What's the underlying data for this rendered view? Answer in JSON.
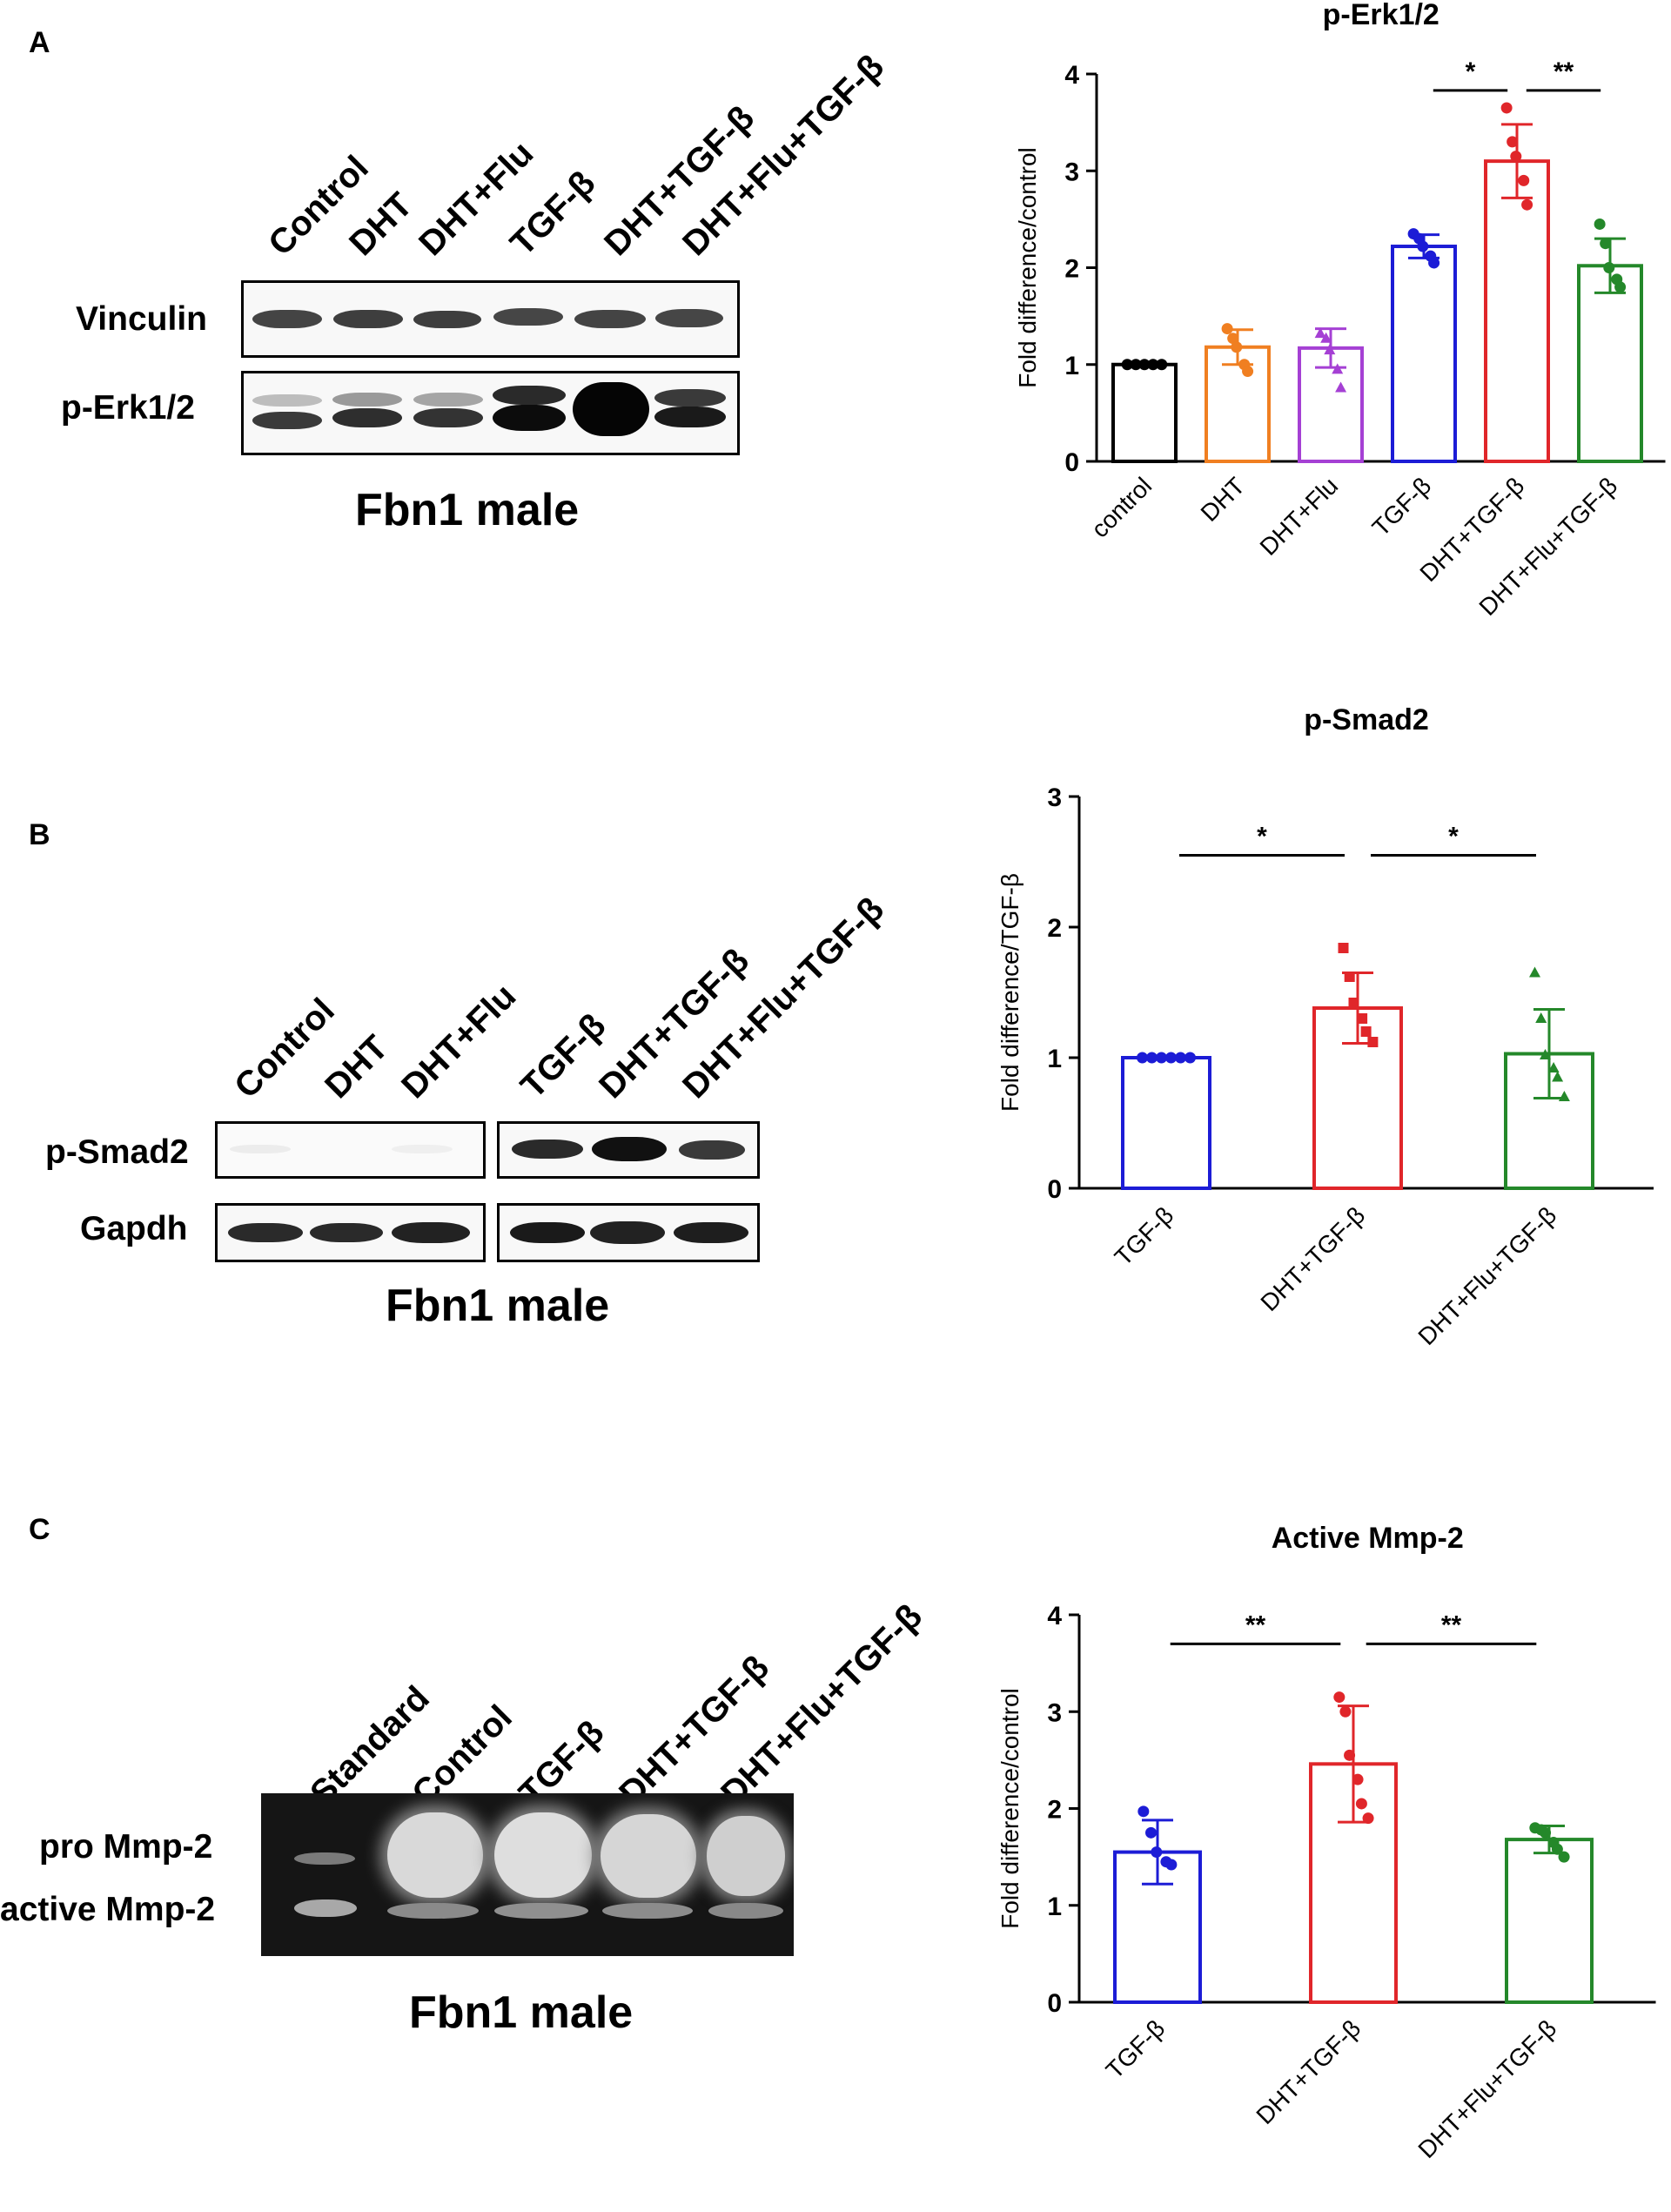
{
  "panels": [
    {
      "letter": "A",
      "blot": {
        "lanes": [
          "Control",
          "DHT",
          "DHT+Flu",
          "TGF-β",
          "DHT+TGF-β",
          "DHT+Flu+TGF-β"
        ],
        "rows": [
          "Vinculin",
          "p-Erk1/2"
        ],
        "caption": "Fbn1 male"
      }
    },
    {
      "letter": "B",
      "blot": {
        "lanes": [
          "Control",
          "DHT",
          "DHT+Flu",
          "TGF-β",
          "DHT+TGF-β",
          "DHT+Flu+TGF-β"
        ],
        "rows": [
          "p-Smad2",
          "Gapdh"
        ],
        "caption": "Fbn1 male"
      }
    },
    {
      "letter": "C",
      "blot": {
        "lanes": [
          "Standard",
          "Control",
          "TGF-β",
          "DHT+TGF-β",
          "DHT+Flu+TGF-β"
        ],
        "rows": [
          "pro Mmp-2",
          "active Mmp-2"
        ],
        "caption": "Fbn1 male"
      }
    }
  ],
  "chart_data": [
    {
      "type": "bar",
      "title": "p-Erk1/2",
      "ylabel": "Fold difference/control",
      "ylim": [
        0,
        4
      ],
      "yticks": [
        0,
        1,
        2,
        3,
        4
      ],
      "categories": [
        "control",
        "DHT",
        "DHT+Flu",
        "TGF-β",
        "DHT+TGF-β",
        "DHT+Flu+TGF-β"
      ],
      "values": [
        1.0,
        1.18,
        1.17,
        2.22,
        3.1,
        2.02
      ],
      "errors": [
        0.0,
        0.18,
        0.2,
        0.12,
        0.38,
        0.28
      ],
      "colors": [
        "#000000",
        "#f07f21",
        "#a540d4",
        "#1c1cd6",
        "#e0262a",
        "#24882a"
      ],
      "markers": [
        "circle",
        "circle",
        "triangle",
        "circle",
        "circle",
        "circle"
      ],
      "points": [
        [
          1.0,
          1.0,
          1.0,
          1.0,
          1.0
        ],
        [
          1.37,
          1.27,
          1.18,
          1.0,
          0.93
        ],
        [
          1.32,
          1.27,
          1.15,
          0.95,
          0.76
        ],
        [
          2.35,
          2.3,
          2.22,
          2.12,
          2.05
        ],
        [
          3.65,
          3.3,
          3.15,
          2.9,
          2.65
        ],
        [
          2.45,
          2.25,
          2.0,
          1.88,
          1.8
        ]
      ],
      "significance": [
        {
          "from": 3,
          "to": 4,
          "label": "*",
          "y": 3.83
        },
        {
          "from": 4,
          "to": 5,
          "label": "**",
          "y": 3.83
        }
      ]
    },
    {
      "type": "bar",
      "title": "p-Smad2",
      "ylabel": "Fold difference/TGF-β",
      "ylim": [
        0,
        3
      ],
      "yticks": [
        0,
        1,
        2,
        3
      ],
      "categories": [
        "TGF-β",
        "DHT+TGF-β",
        "DHT+Flu+TGF-β"
      ],
      "values": [
        1.0,
        1.38,
        1.03
      ],
      "errors": [
        0.0,
        0.27,
        0.34
      ],
      "colors": [
        "#1c1cd6",
        "#e0262a",
        "#24882a"
      ],
      "markers": [
        "circle",
        "square",
        "triangle"
      ],
      "points": [
        [
          1.0,
          1.0,
          1.0,
          1.0,
          1.0,
          1.0
        ],
        [
          1.84,
          1.62,
          1.42,
          1.3,
          1.2,
          1.12
        ],
        [
          1.65,
          1.3,
          1.02,
          0.92,
          0.85,
          0.7
        ]
      ],
      "significance": [
        {
          "from": 0,
          "to": 1,
          "label": "*",
          "y": 2.55
        },
        {
          "from": 1,
          "to": 2,
          "label": "*",
          "y": 2.55
        }
      ]
    },
    {
      "type": "bar",
      "title": "Active Mmp-2",
      "ylabel": "Fold difference/control",
      "ylim": [
        0,
        4
      ],
      "yticks": [
        0,
        1,
        2,
        3,
        4
      ],
      "categories": [
        "TGF-β",
        "DHT+TGF-β",
        "DHT+Flu+TGF-β"
      ],
      "values": [
        1.55,
        2.46,
        1.68
      ],
      "errors": [
        0.33,
        0.6,
        0.14
      ],
      "colors": [
        "#1c1cd6",
        "#e0262a",
        "#24882a"
      ],
      "markers": [
        "circle",
        "circle",
        "circle"
      ],
      "points": [
        [
          1.97,
          1.75,
          1.55,
          1.45,
          1.42
        ],
        [
          3.15,
          3.0,
          2.55,
          2.3,
          2.05,
          1.9
        ],
        [
          1.8,
          1.78,
          1.75,
          1.65,
          1.58,
          1.5
        ]
      ],
      "significance": [
        {
          "from": 0,
          "to": 1,
          "label": "**",
          "y": 3.7
        },
        {
          "from": 1,
          "to": 2,
          "label": "**",
          "y": 3.7
        }
      ]
    }
  ]
}
